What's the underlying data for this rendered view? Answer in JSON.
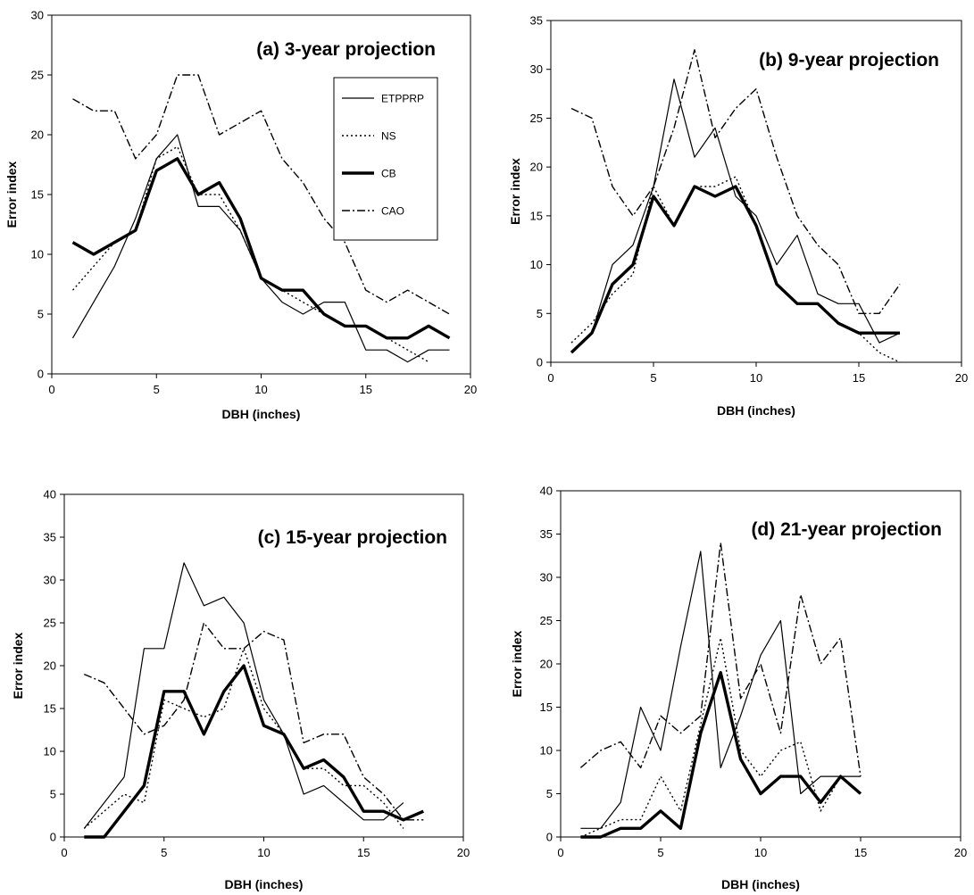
{
  "series_styles": [
    {
      "key": "ETPPRP",
      "color": "#000000",
      "dash": "",
      "width": 1.2
    },
    {
      "key": "NS",
      "color": "#000000",
      "dash": "2,3",
      "width": 1.4
    },
    {
      "key": "CB",
      "color": "#000000",
      "dash": "",
      "width": 3.4
    },
    {
      "key": "CAO",
      "color": "#000000",
      "dash": "9,3,2,3",
      "width": 1.4
    }
  ],
  "legend": {
    "items": [
      "ETPPRP",
      "NS",
      "CB",
      "CAO"
    ],
    "placement": "inside-top-right of panel (a)"
  },
  "chart_data": [
    {
      "type": "line",
      "title": "(a) 3-year projection",
      "xlabel": "DBH (inches)",
      "ylabel": "Error index",
      "xlim": [
        0,
        20
      ],
      "ylim": [
        0,
        30
      ],
      "xticks": [
        0,
        5,
        10,
        15,
        20
      ],
      "yticks": [
        0,
        5,
        10,
        15,
        20,
        25,
        30
      ],
      "x": [
        1,
        2,
        3,
        4,
        5,
        6,
        7,
        8,
        9,
        10,
        11,
        12,
        13,
        14,
        15,
        16,
        17,
        18,
        19
      ],
      "series": [
        {
          "name": "ETPPRP",
          "values": [
            3,
            6,
            9,
            13,
            18,
            20,
            14,
            14,
            12,
            8,
            6,
            5,
            6,
            6,
            2,
            2,
            1,
            2,
            2
          ]
        },
        {
          "name": "NS",
          "values": [
            7,
            9,
            11,
            12,
            18,
            19,
            15,
            15,
            12,
            8,
            7,
            6,
            5,
            4,
            4,
            3,
            2,
            1,
            null
          ]
        },
        {
          "name": "CB",
          "values": [
            11,
            10,
            11,
            12,
            17,
            18,
            15,
            16,
            13,
            8,
            7,
            7,
            5,
            4,
            4,
            3,
            3,
            4,
            3
          ]
        },
        {
          "name": "CAO",
          "values": [
            23,
            22,
            22,
            18,
            20,
            25,
            25,
            20,
            21,
            22,
            18,
            16,
            13,
            11,
            7,
            6,
            7,
            6,
            5
          ]
        }
      ]
    },
    {
      "type": "line",
      "title": "(b) 9-year projection",
      "xlabel": "DBH (inches)",
      "ylabel": "Error index",
      "xlim": [
        0,
        20
      ],
      "ylim": [
        0,
        35
      ],
      "xticks": [
        0,
        5,
        10,
        15,
        20
      ],
      "yticks": [
        0,
        5,
        10,
        15,
        20,
        25,
        30,
        35
      ],
      "x": [
        1,
        2,
        3,
        4,
        5,
        6,
        7,
        8,
        9,
        10,
        11,
        12,
        13,
        14,
        15,
        16,
        17
      ],
      "series": [
        {
          "name": "ETPPRP",
          "values": [
            1,
            3,
            10,
            12,
            18,
            29,
            21,
            24,
            17,
            15,
            10,
            13,
            7,
            6,
            6,
            2,
            3
          ]
        },
        {
          "name": "NS",
          "values": [
            2,
            4,
            7,
            9,
            18,
            14,
            18,
            18,
            19,
            14,
            8,
            6,
            6,
            4,
            3,
            1,
            0
          ]
        },
        {
          "name": "CB",
          "values": [
            1,
            3,
            8,
            10,
            17,
            14,
            18,
            17,
            18,
            14,
            8,
            6,
            6,
            4,
            3,
            3,
            3
          ]
        },
        {
          "name": "CAO",
          "values": [
            26,
            25,
            18,
            15,
            18,
            24,
            32,
            23,
            26,
            28,
            21,
            15,
            12,
            10,
            5,
            5,
            8
          ]
        }
      ]
    },
    {
      "type": "line",
      "title": "(c) 15-year projection",
      "xlabel": "DBH (inches)",
      "ylabel": "Error index",
      "xlim": [
        0,
        20
      ],
      "ylim": [
        0,
        40
      ],
      "xticks": [
        0,
        5,
        10,
        15,
        20
      ],
      "yticks": [
        0,
        5,
        10,
        15,
        20,
        25,
        30,
        35,
        40
      ],
      "x": [
        1,
        2,
        3,
        4,
        5,
        6,
        7,
        8,
        9,
        10,
        11,
        12,
        13,
        14,
        15,
        16,
        17,
        18
      ],
      "series": [
        {
          "name": "ETPPRP",
          "values": [
            1,
            4,
            7,
            22,
            22,
            32,
            27,
            28,
            25,
            16,
            12,
            5,
            6,
            4,
            2,
            2,
            4,
            null
          ]
        },
        {
          "name": "NS",
          "values": [
            1,
            3,
            5,
            4,
            16,
            15,
            14,
            15,
            22,
            15,
            12,
            8,
            8,
            6,
            6,
            4,
            1,
            null
          ]
        },
        {
          "name": "CB",
          "values": [
            0,
            0,
            3,
            6,
            17,
            17,
            12,
            17,
            20,
            13,
            12,
            8,
            9,
            7,
            3,
            3,
            2,
            3
          ]
        },
        {
          "name": "CAO",
          "values": [
            19,
            18,
            15,
            12,
            13,
            16,
            25,
            22,
            22,
            24,
            23,
            11,
            12,
            12,
            7,
            5,
            2,
            2
          ]
        }
      ]
    },
    {
      "type": "line",
      "title": "(d) 21-year projection",
      "xlabel": "DBH (inches)",
      "ylabel": "Error index",
      "xlim": [
        0,
        20
      ],
      "ylim": [
        0,
        40
      ],
      "xticks": [
        0,
        5,
        10,
        15,
        20
      ],
      "yticks": [
        0,
        5,
        10,
        15,
        20,
        25,
        30,
        35,
        40
      ],
      "x": [
        1,
        2,
        3,
        4,
        5,
        6,
        7,
        8,
        9,
        10,
        11,
        12,
        13,
        14,
        15
      ],
      "series": [
        {
          "name": "ETPPRP",
          "values": [
            1,
            1,
            4,
            15,
            10,
            22,
            33,
            8,
            14,
            21,
            25,
            5,
            7,
            7,
            7
          ]
        },
        {
          "name": "NS",
          "values": [
            0,
            1,
            2,
            2,
            7,
            3,
            13,
            23,
            10,
            7,
            10,
            11,
            3,
            7,
            5
          ]
        },
        {
          "name": "CB",
          "values": [
            0,
            0,
            1,
            1,
            3,
            1,
            12,
            19,
            9,
            5,
            7,
            7,
            4,
            7,
            5
          ]
        },
        {
          "name": "CAO",
          "values": [
            8,
            10,
            11,
            8,
            14,
            12,
            14,
            34,
            16,
            20,
            12,
            28,
            20,
            23,
            7
          ]
        }
      ]
    }
  ]
}
